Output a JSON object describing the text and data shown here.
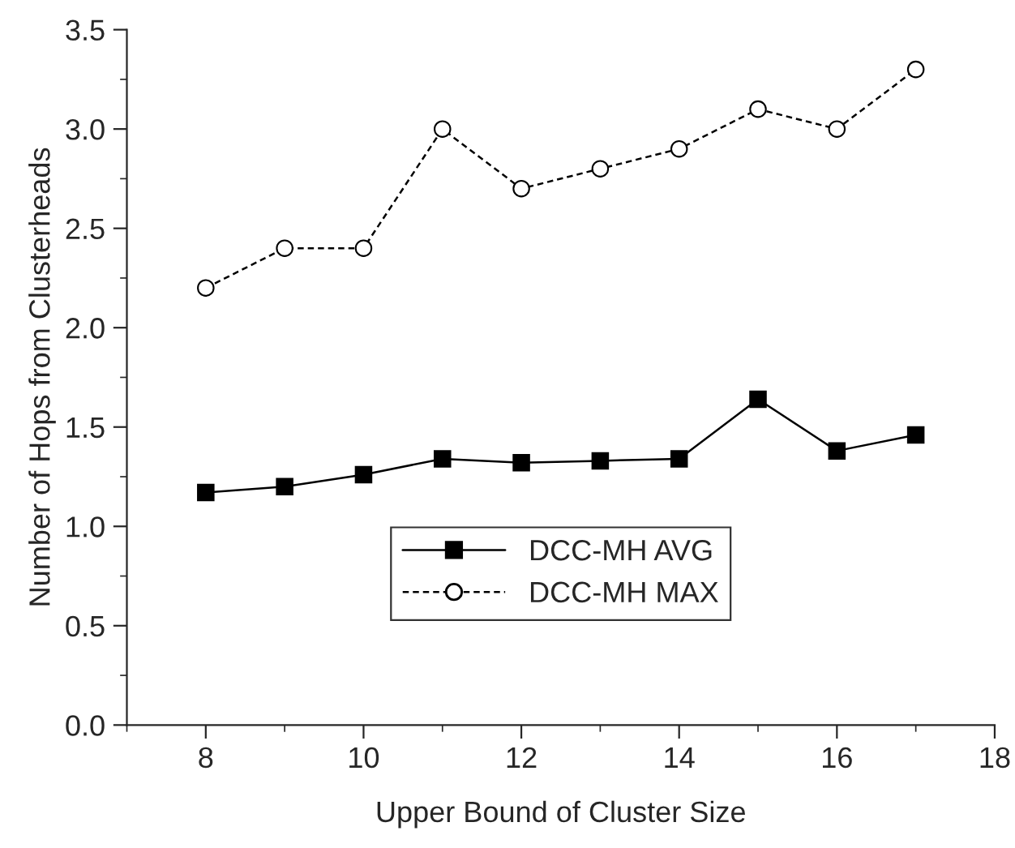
{
  "chart_data": {
    "type": "line",
    "xlabel": "Upper Bound of Cluster Size",
    "ylabel": "Number of Hops from Clusterheads",
    "x": [
      8,
      9,
      10,
      11,
      12,
      13,
      14,
      15,
      16,
      17
    ],
    "series": [
      {
        "name": "DCC-MH AVG",
        "color": "#000000",
        "marker": "square",
        "line_style": "solid",
        "values": [
          1.17,
          1.2,
          1.26,
          1.34,
          1.32,
          1.33,
          1.34,
          1.64,
          1.38,
          1.46
        ]
      },
      {
        "name": "DCC-MH MAX",
        "color": "#000000",
        "marker": "circle",
        "line_style": "dashed",
        "values": [
          2.2,
          2.4,
          2.4,
          3.0,
          2.7,
          2.8,
          2.9,
          3.1,
          3.0,
          3.3
        ]
      }
    ],
    "xlim": [
      7,
      18
    ],
    "xticks": [
      8,
      10,
      12,
      14,
      16,
      18
    ],
    "ylim": [
      0,
      3.5
    ],
    "yticks": [
      {
        "value": 0,
        "label": "0.0"
      },
      0.5,
      {
        "value": 1,
        "label": "1.0"
      },
      1.5,
      {
        "value": 2,
        "label": "2.0"
      },
      2.5,
      {
        "value": 3,
        "label": "3.0"
      },
      3.5
    ],
    "grid": false,
    "legend": "bottom"
  }
}
